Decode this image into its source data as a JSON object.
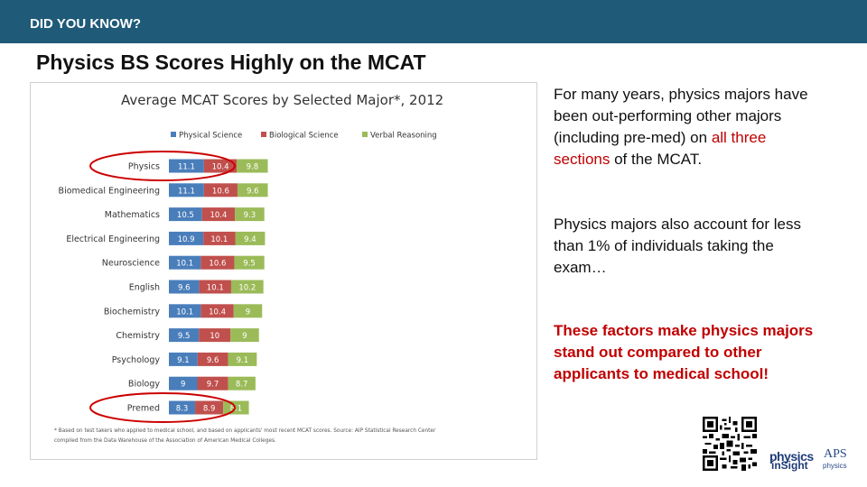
{
  "header": {
    "label": "DID YOU KNOW?"
  },
  "slide": {
    "title": "Physics BS Scores Highly on the MCAT"
  },
  "text": {
    "p1_before": "For many years, physics majors have been out-performing other majors (including pre-med) on ",
    "p1_highlight": "all three sections",
    "p1_after": " of the MCAT.",
    "p2": "Physics majors also account for less than 1% of individuals taking the exam…",
    "p3": "These factors make physics majors stand out compared to other applicants to medical school!"
  },
  "logos": {
    "physics": "physics",
    "insight": "inSight",
    "aps": "APS",
    "aps_sub": "physics"
  },
  "colors": {
    "header_bg": "#1f5a78",
    "physical": "#4a7ebb",
    "biological": "#c0504d",
    "verbal": "#9bbb59",
    "highlight": "#c00000",
    "circle": "#cc0000"
  },
  "chart_data": {
    "type": "bar",
    "stacked": true,
    "orientation": "horizontal",
    "title": "Average MCAT Scores by Selected Major*, 2012",
    "categories": [
      "Physics",
      "Biomedical Engineering",
      "Mathematics",
      "Electrical Engineering",
      "Neuroscience",
      "English",
      "Biochemistry",
      "Chemistry",
      "Psychology",
      "Biology",
      "Premed"
    ],
    "series": [
      {
        "name": "Physical Science",
        "color": "#4a7ebb",
        "values": [
          "11.1",
          "11.1",
          "10.5",
          "10.9",
          "10.1",
          "9.6",
          "10.1",
          "9.5",
          "9.1",
          "9",
          "8.3"
        ]
      },
      {
        "name": "Biological Science",
        "color": "#c0504d",
        "values": [
          "10.4",
          "10.6",
          "10.4",
          "10.1",
          "10.6",
          "10.1",
          "10.4",
          "10",
          "9.6",
          "9.7",
          "8.9"
        ]
      },
      {
        "name": "Verbal Reasoning",
        "color": "#9bbb59",
        "values": [
          "9.8",
          "9.6",
          "9.3",
          "9.4",
          "9.5",
          "10.2",
          "9",
          "9",
          "9.1",
          "8.7",
          "8.1"
        ]
      }
    ],
    "legend": "top",
    "grid": false,
    "highlighted_categories": [
      "Physics",
      "Premed"
    ],
    "footnote_lines": [
      "* Based on test takers who applied to medical school, and based on applicants' most recent MCAT scores. Source: AIP Statistical Research Center",
      "compiled from the Data Warehouse of the Association of American Medical Colleges."
    ]
  }
}
